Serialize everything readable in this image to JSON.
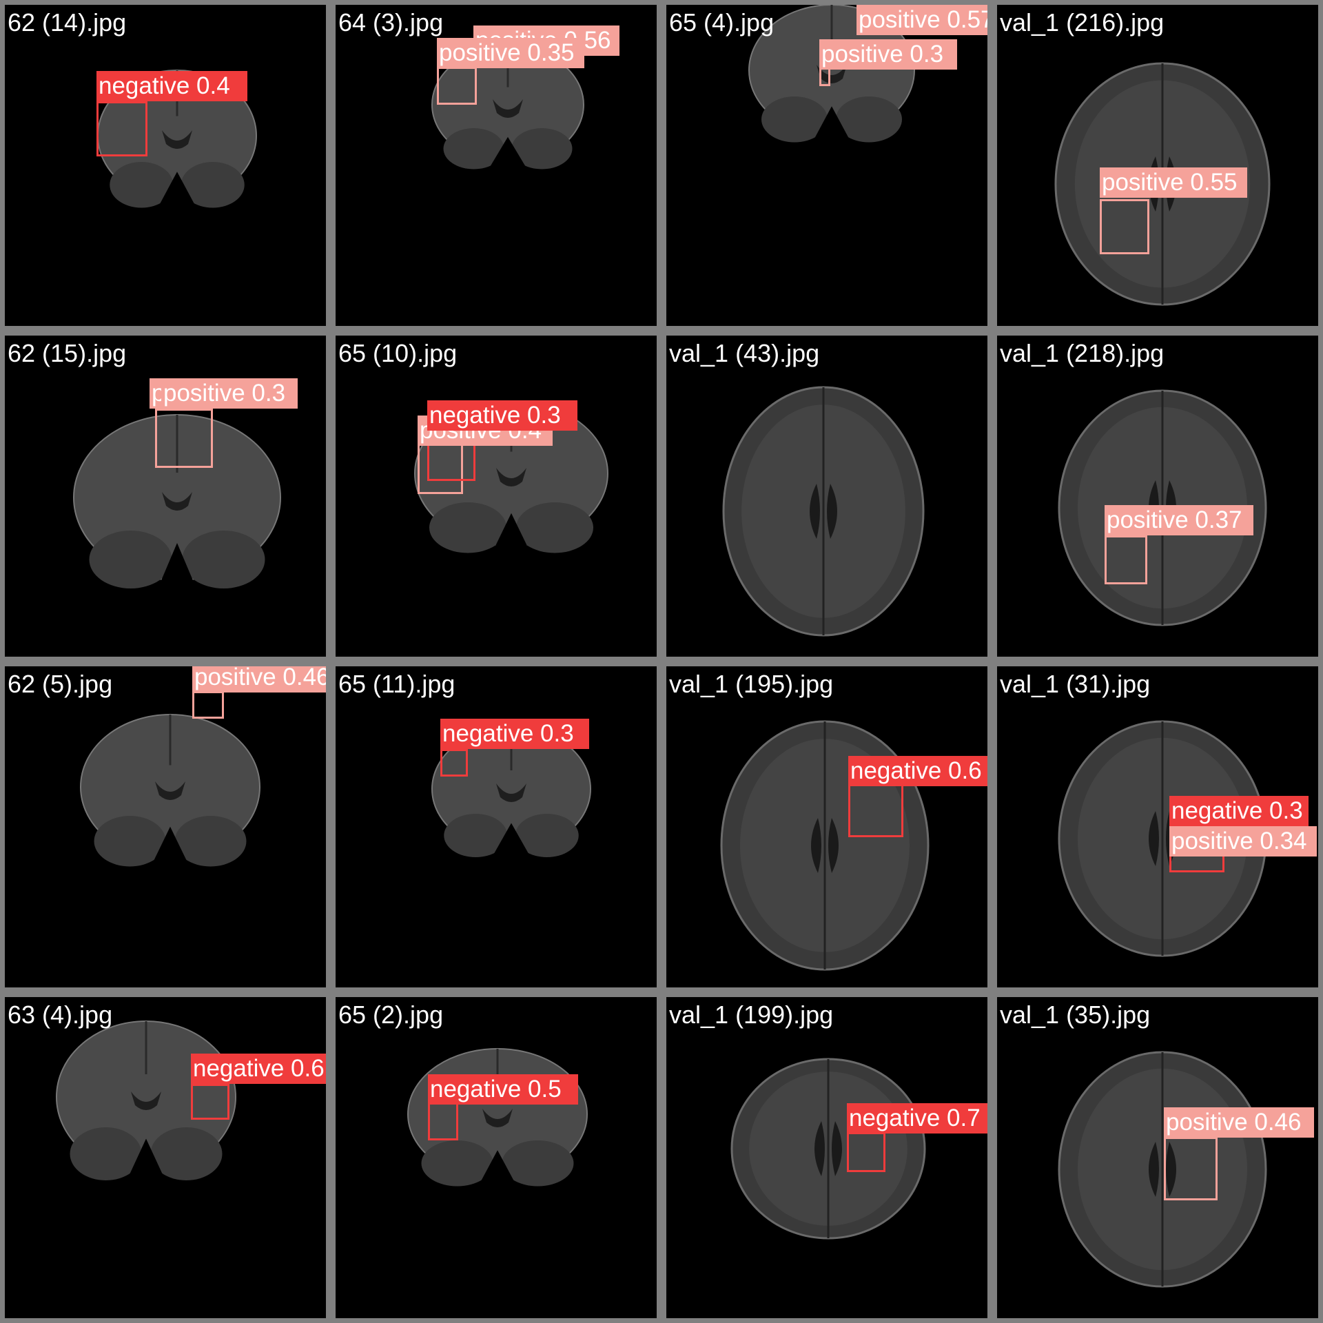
{
  "colors": {
    "negative": "#f03c3c",
    "positive": "#f5a29a",
    "background": "#000000",
    "separator": "#808080"
  },
  "tiles": [
    {
      "file": "62 (14).jpg",
      "view": "coronal",
      "detections": [
        {
          "label": "negative 0.4",
          "cls": "negative"
        }
      ]
    },
    {
      "file": "64 (3).jpg",
      "view": "coronal",
      "detections": [
        {
          "label": "positive 0.56",
          "cls": "positive"
        },
        {
          "label": "positive 0.35",
          "cls": "positive"
        }
      ]
    },
    {
      "file": "65 (4).jpg",
      "view": "coronal",
      "detections": [
        {
          "label": "positive 0.57",
          "cls": "positive"
        },
        {
          "label": "positive 0.3",
          "cls": "positive"
        }
      ]
    },
    {
      "file": "val_1 (216).jpg",
      "view": "axial",
      "detections": [
        {
          "label": "positive 0.55",
          "cls": "positive"
        }
      ]
    },
    {
      "file": "62 (15).jpg",
      "view": "coronal",
      "detections": [
        {
          "label": "positive",
          "cls": "positive"
        },
        {
          "label": "positive 0.3",
          "cls": "positive"
        }
      ]
    },
    {
      "file": "65 (10).jpg",
      "view": "coronal",
      "detections": [
        {
          "label": "positive 0.4",
          "cls": "positive"
        },
        {
          "label": "negative 0.3",
          "cls": "negative"
        }
      ]
    },
    {
      "file": "val_1 (43).jpg",
      "view": "axial",
      "detections": []
    },
    {
      "file": "val_1 (218).jpg",
      "view": "axial",
      "detections": [
        {
          "label": "positive 0.37",
          "cls": "positive"
        }
      ]
    },
    {
      "file": "62 (5).jpg",
      "view": "coronal",
      "detections": [
        {
          "label": "positive 0.46",
          "cls": "positive"
        }
      ]
    },
    {
      "file": "65 (11).jpg",
      "view": "coronal",
      "detections": [
        {
          "label": "negative 0.3",
          "cls": "negative"
        }
      ]
    },
    {
      "file": "val_1 (195).jpg",
      "view": "axial",
      "detections": [
        {
          "label": "negative 0.6",
          "cls": "negative"
        }
      ]
    },
    {
      "file": "val_1 (31).jpg",
      "view": "axial",
      "detections": [
        {
          "label": "negative 0.3",
          "cls": "negative"
        },
        {
          "label": "positive 0.34",
          "cls": "positive"
        }
      ]
    },
    {
      "file": "63 (4).jpg",
      "view": "coronal",
      "detections": [
        {
          "label": "negative 0.6",
          "cls": "negative"
        }
      ]
    },
    {
      "file": "65 (2).jpg",
      "view": "coronal",
      "detections": [
        {
          "label": "negative 0.5",
          "cls": "negative"
        }
      ]
    },
    {
      "file": "val_1 (199).jpg",
      "view": "axial",
      "detections": [
        {
          "label": "negative 0.7",
          "cls": "negative"
        }
      ]
    },
    {
      "file": "val_1 (35).jpg",
      "view": "axial",
      "detections": [
        {
          "label": "positive 0.46",
          "cls": "positive"
        }
      ]
    }
  ]
}
